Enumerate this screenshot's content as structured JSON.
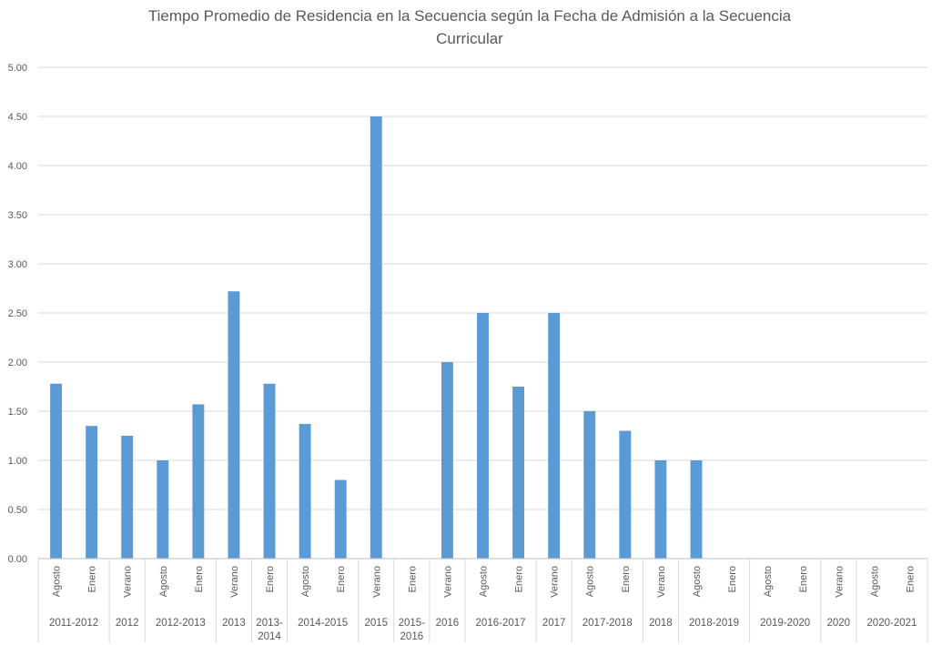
{
  "chart_data": {
    "type": "bar",
    "title": "Tiempo Promedio de Residencia en la Secuencia según la Fecha de Admisión a la Secuencia Curricular",
    "title_lines": [
      "Tiempo Promedio de Residencia en la Secuencia según la Fecha de Admisión a la Secuencia",
      "Curricular"
    ],
    "xlabel": "",
    "ylabel": "",
    "ylim": [
      0,
      5
    ],
    "yticks": [
      "0.00",
      "0.50",
      "1.00",
      "1.50",
      "2.00",
      "2.50",
      "3.00",
      "3.50",
      "4.00",
      "4.50",
      "5.00"
    ],
    "grid": true,
    "bar_color": "#5b9bd5",
    "groups": [
      {
        "label": "2011-2012",
        "categories": [
          "Agosto",
          "Enero"
        ],
        "values": [
          1.78,
          1.35
        ]
      },
      {
        "label": "2012",
        "categories": [
          "Verano"
        ],
        "values": [
          1.25
        ]
      },
      {
        "label": "2012-2013",
        "categories": [
          "Agosto",
          "Enero"
        ],
        "values": [
          1.0,
          1.57
        ]
      },
      {
        "label": "2013",
        "categories": [
          "Verano"
        ],
        "values": [
          2.72
        ]
      },
      {
        "label": "2013-2014",
        "categories": [
          "Enero"
        ],
        "values": [
          1.78
        ]
      },
      {
        "label": "2014-2015",
        "categories": [
          "Agosto",
          "Enero"
        ],
        "values": [
          1.37,
          0.8
        ]
      },
      {
        "label": "2015",
        "categories": [
          "Verano"
        ],
        "values": [
          4.5
        ]
      },
      {
        "label": "2015-2016",
        "categories": [
          "Enero"
        ],
        "values": [
          0
        ]
      },
      {
        "label": "2016",
        "categories": [
          "Verano"
        ],
        "values": [
          2.0
        ]
      },
      {
        "label": "2016-2017",
        "categories": [
          "Agosto",
          "Enero"
        ],
        "values": [
          2.5,
          1.75
        ]
      },
      {
        "label": "2017",
        "categories": [
          "Verano"
        ],
        "values": [
          2.5
        ]
      },
      {
        "label": "2017-2018",
        "categories": [
          "Agosto",
          "Enero"
        ],
        "values": [
          1.5,
          1.3
        ]
      },
      {
        "label": "2018",
        "categories": [
          "Verano"
        ],
        "values": [
          1.0
        ]
      },
      {
        "label": "2018-2019",
        "categories": [
          "Agosto",
          "Enero"
        ],
        "values": [
          1.0,
          0
        ]
      },
      {
        "label": "2019-2020",
        "categories": [
          "Agosto",
          "Enero"
        ],
        "values": [
          0,
          0
        ]
      },
      {
        "label": "2020",
        "categories": [
          "Verano"
        ],
        "values": [
          0
        ]
      },
      {
        "label": "2020-2021",
        "categories": [
          "Agosto",
          "Enero"
        ],
        "values": [
          0,
          0
        ]
      }
    ]
  }
}
